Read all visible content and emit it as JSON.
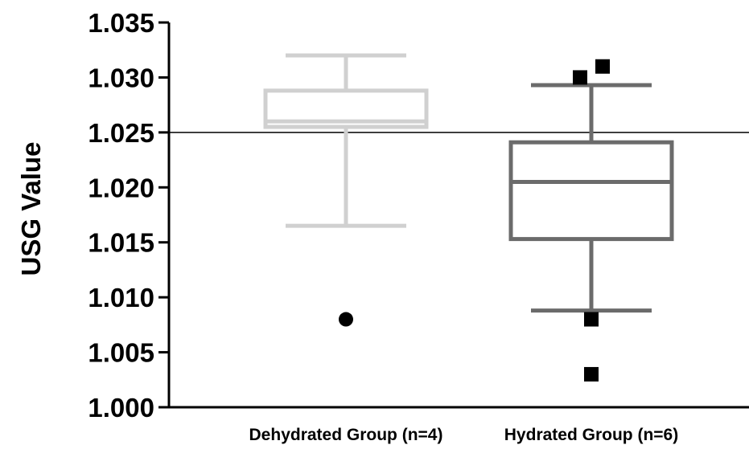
{
  "chart_data": {
    "type": "box",
    "title": "",
    "xlabel": "",
    "ylabel": "USG Value",
    "ylim": [
      1.0,
      1.035
    ],
    "yticks": [
      "1.000",
      "1.005",
      "1.010",
      "1.015",
      "1.020",
      "1.025",
      "1.030",
      "1.035"
    ],
    "reference_line": 1.025,
    "grid": false,
    "legend": "none",
    "categories": [
      "Dehydrated Group (n=4)",
      "Hydrated Group (n=6)"
    ],
    "series": [
      {
        "color": "#d0d0d0",
        "whisker_low": 1.0165,
        "q1": 1.0255,
        "median": 1.026,
        "q3": 1.0288,
        "whisker_high": 1.032,
        "outlier_marker": "circle",
        "outliers": [
          1.008
        ]
      },
      {
        "color": "#6b6b6b",
        "whisker_low": 1.0088,
        "q1": 1.0153,
        "median": 1.0205,
        "q3": 1.0241,
        "whisker_high": 1.0293,
        "outlier_marker": "square",
        "outliers": [
          1.03,
          1.031,
          1.008,
          1.003
        ]
      }
    ]
  }
}
